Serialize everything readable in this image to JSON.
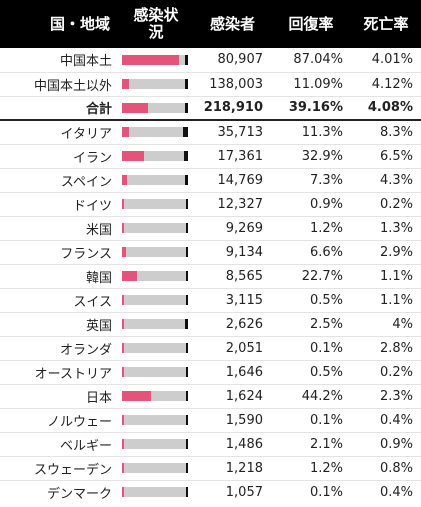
{
  "colors": {
    "header_bg": "#000000",
    "recovered": "#e5527a",
    "active": "#cdcdcd",
    "death": "#111111"
  },
  "header": {
    "country": "国・地域",
    "status_line1": "感染状",
    "status_line2": "況",
    "cases": "感染者",
    "recovery": "回復率",
    "death": "死亡率"
  },
  "summary_rows": [
    {
      "name": "中国本土",
      "cases": "80,907",
      "recovery": "87.04%",
      "death": "4.01%",
      "recovery_pct": 87.04,
      "death_pct": 4.01
    },
    {
      "name": "中国本土以外",
      "cases": "138,003",
      "recovery": "11.09%",
      "death": "4.12%",
      "recovery_pct": 11.09,
      "death_pct": 4.12
    },
    {
      "name": "合計",
      "cases": "218,910",
      "recovery": "39.16%",
      "death": "4.08%",
      "recovery_pct": 39.16,
      "death_pct": 4.08
    }
  ],
  "countries": [
    {
      "name": "イタリア",
      "cases": "35,713",
      "recovery": "11.3%",
      "death": "8.3%",
      "recovery_pct": 11.3,
      "death_pct": 8.3
    },
    {
      "name": "イラン",
      "cases": "17,361",
      "recovery": "32.9%",
      "death": "6.5%",
      "recovery_pct": 32.9,
      "death_pct": 6.5
    },
    {
      "name": "スペイン",
      "cases": "14,769",
      "recovery": "7.3%",
      "death": "4.3%",
      "recovery_pct": 7.3,
      "death_pct": 4.3
    },
    {
      "name": "ドイツ",
      "cases": "12,327",
      "recovery": "0.9%",
      "death": "0.2%",
      "recovery_pct": 0.9,
      "death_pct": 0.2
    },
    {
      "name": "米国",
      "cases": "9,269",
      "recovery": "1.2%",
      "death": "1.3%",
      "recovery_pct": 1.2,
      "death_pct": 1.3
    },
    {
      "name": "フランス",
      "cases": "9,134",
      "recovery": "6.6%",
      "death": "2.9%",
      "recovery_pct": 6.6,
      "death_pct": 2.9
    },
    {
      "name": "韓国",
      "cases": "8,565",
      "recovery": "22.7%",
      "death": "1.1%",
      "recovery_pct": 22.7,
      "death_pct": 1.1
    },
    {
      "name": "スイス",
      "cases": "3,115",
      "recovery": "0.5%",
      "death": "1.1%",
      "recovery_pct": 0.5,
      "death_pct": 1.1
    },
    {
      "name": "英国",
      "cases": "2,626",
      "recovery": "2.5%",
      "death": "4%",
      "recovery_pct": 2.5,
      "death_pct": 4
    },
    {
      "name": "オランダ",
      "cases": "2,051",
      "recovery": "0.1%",
      "death": "2.8%",
      "recovery_pct": 0.1,
      "death_pct": 2.8
    },
    {
      "name": "オーストリア",
      "cases": "1,646",
      "recovery": "0.5%",
      "death": "0.2%",
      "recovery_pct": 0.5,
      "death_pct": 0.2
    },
    {
      "name": "日本",
      "cases": "1,624",
      "recovery": "44.2%",
      "death": "2.3%",
      "recovery_pct": 44.2,
      "death_pct": 2.3
    },
    {
      "name": "ノルウェー",
      "cases": "1,590",
      "recovery": "0.1%",
      "death": "0.4%",
      "recovery_pct": 0.1,
      "death_pct": 0.4
    },
    {
      "name": "ベルギー",
      "cases": "1,486",
      "recovery": "2.1%",
      "death": "0.9%",
      "recovery_pct": 2.1,
      "death_pct": 0.9
    },
    {
      "name": "スウェーデン",
      "cases": "1,218",
      "recovery": "1.2%",
      "death": "0.8%",
      "recovery_pct": 1.2,
      "death_pct": 0.8
    },
    {
      "name": "デンマーク",
      "cases": "1,057",
      "recovery": "0.1%",
      "death": "0.4%",
      "recovery_pct": 0.1,
      "death_pct": 0.4
    }
  ]
}
